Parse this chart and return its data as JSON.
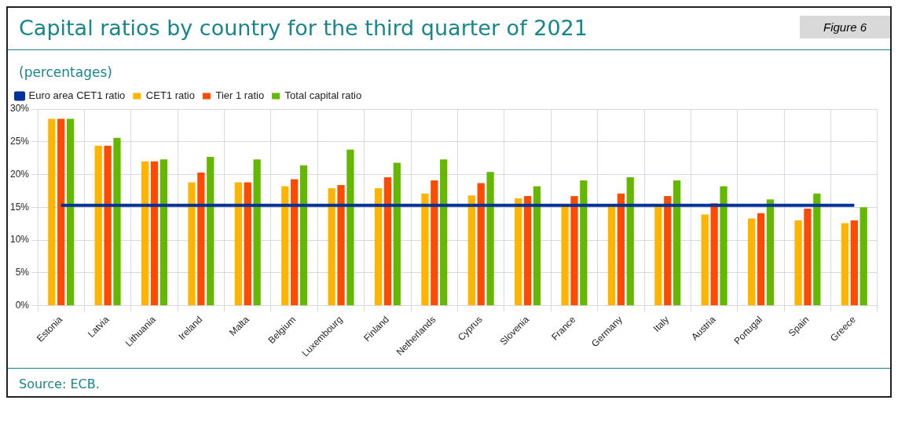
{
  "chart_data": {
    "type": "bar",
    "title": "Capital ratios by country for the third quarter of 2021",
    "subtitle": "(percentages)",
    "annotations": [
      "Figure 6",
      "Source: ECB."
    ],
    "categories": [
      "Estonia",
      "Latvia",
      "Lithuania",
      "Ireland",
      "Malta",
      "Belgium",
      "Luxembourg",
      "Finland",
      "Netherlands",
      "Cyprus",
      "Slovenia",
      "France",
      "Germany",
      "Italy",
      "Austria",
      "Portugal",
      "Spain",
      "Greece"
    ],
    "series": [
      {
        "name": "Euro area CET1 ratio",
        "type": "line",
        "color": "#003299",
        "values": [
          15.3,
          15.3,
          15.3,
          15.3,
          15.3,
          15.3,
          15.3,
          15.3,
          15.3,
          15.3,
          15.3,
          15.3,
          15.3,
          15.3,
          15.3,
          15.3,
          15.3,
          15.3
        ]
      },
      {
        "name": "CET1 ratio",
        "color": "#ffb400",
        "values": [
          28.5,
          24.4,
          22.0,
          18.8,
          18.8,
          18.2,
          17.9,
          17.9,
          17.1,
          16.8,
          16.4,
          15.3,
          15.3,
          15.2,
          13.9,
          13.3,
          13.0,
          12.6
        ]
      },
      {
        "name": "Tier 1 ratio",
        "color": "#ff4b00",
        "values": [
          28.5,
          24.4,
          22.0,
          20.3,
          18.8,
          19.3,
          18.4,
          19.6,
          19.1,
          18.7,
          16.7,
          16.7,
          17.1,
          16.7,
          15.6,
          14.1,
          14.8,
          13.0
        ]
      },
      {
        "name": "Total capital ratio",
        "color": "#65b800",
        "values": [
          28.5,
          25.6,
          22.3,
          22.7,
          22.3,
          21.4,
          23.8,
          21.8,
          22.3,
          20.4,
          18.2,
          19.1,
          19.6,
          19.1,
          18.2,
          16.2,
          17.1,
          15.0
        ]
      }
    ],
    "ylim": [
      0,
      30
    ],
    "yticks": [
      {
        "value": 0,
        "label": "0%"
      },
      {
        "value": 5,
        "label": "5%"
      },
      {
        "value": 10,
        "label": "10%"
      },
      {
        "value": 15,
        "label": "15%"
      },
      {
        "value": 20,
        "label": "20%"
      },
      {
        "value": 25,
        "label": "25%"
      },
      {
        "value": 30,
        "label": "30%"
      }
    ],
    "grid": true,
    "legend": "top left"
  }
}
